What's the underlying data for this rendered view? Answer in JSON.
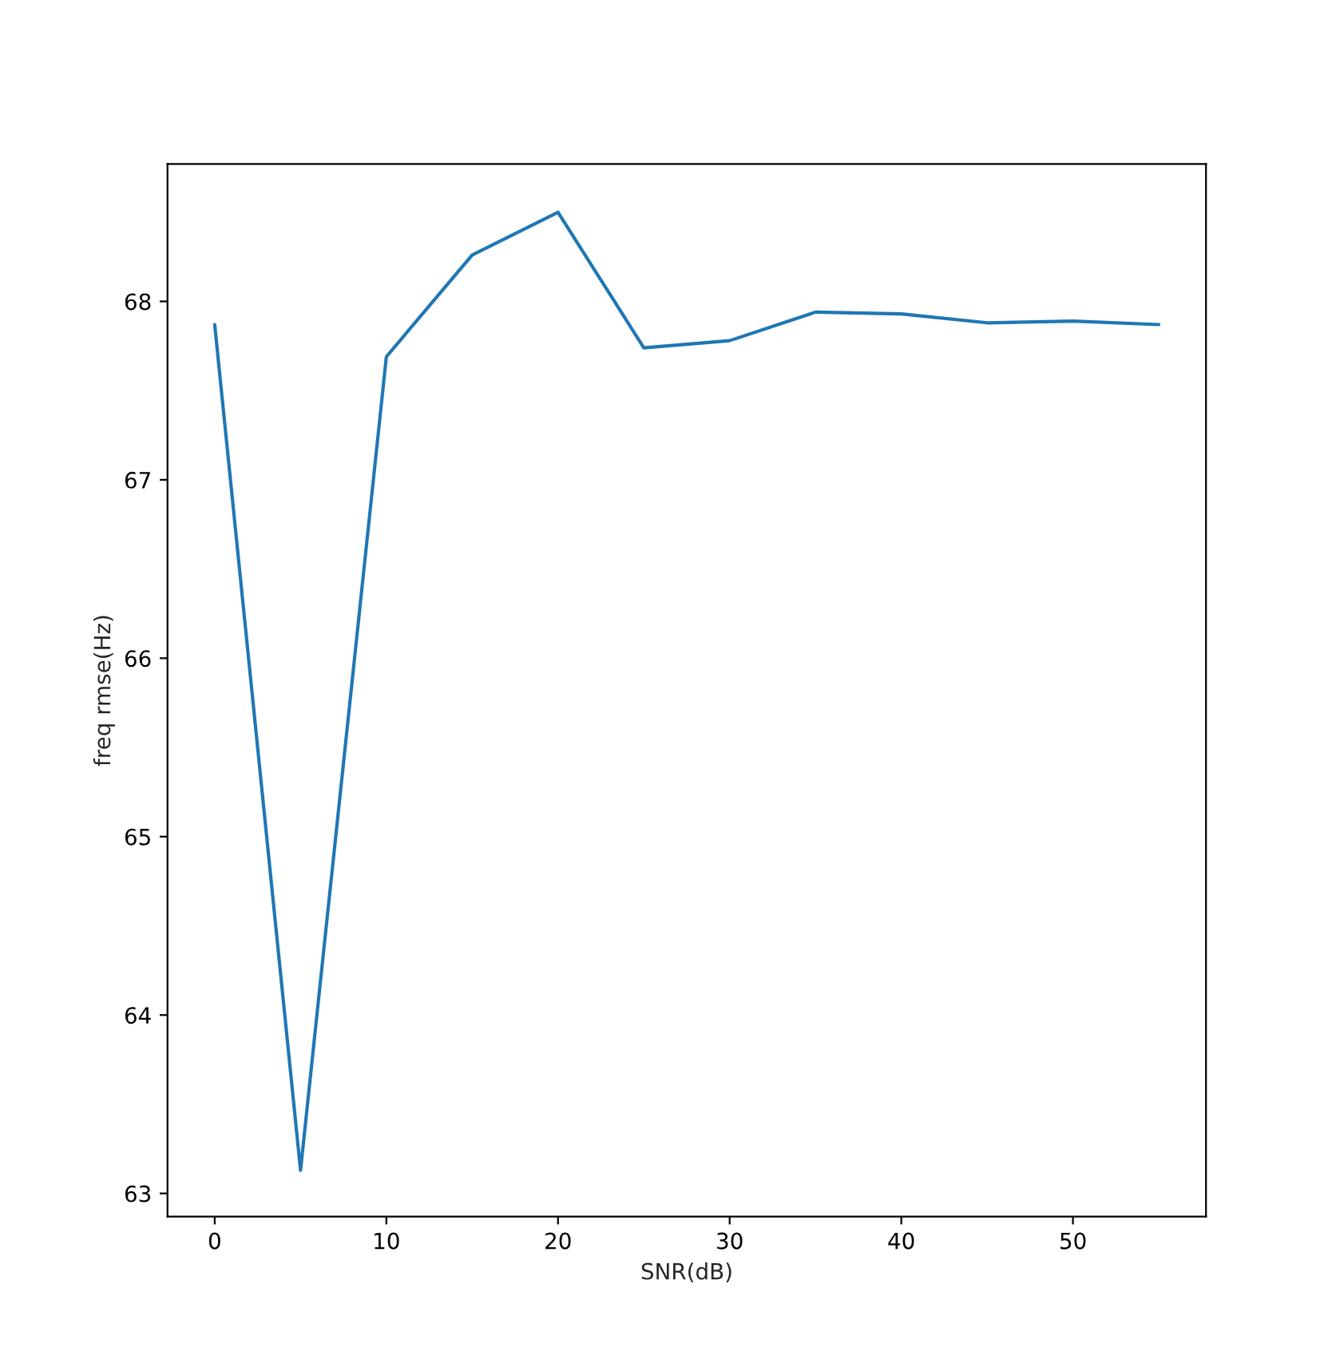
{
  "chart_data": {
    "type": "line",
    "xlabel": "SNR(dB)",
    "ylabel": "freq rmse(Hz)",
    "x": [
      0,
      5,
      10,
      15,
      20,
      25,
      30,
      35,
      40,
      45,
      50,
      55
    ],
    "series": [
      {
        "color": "#1f77b4",
        "values": [
          67.87,
          63.13,
          67.69,
          68.26,
          68.5,
          67.74,
          67.78,
          67.94,
          67.93,
          67.88,
          67.89,
          67.87
        ]
      }
    ],
    "xlim": [
      -2.75,
      57.75
    ],
    "ylim": [
      62.87,
      68.77
    ],
    "xticks": [
      0,
      10,
      20,
      30,
      40,
      50
    ],
    "yticks": [
      63,
      64,
      65,
      66,
      67,
      68
    ],
    "grid": false,
    "legend": false
  }
}
